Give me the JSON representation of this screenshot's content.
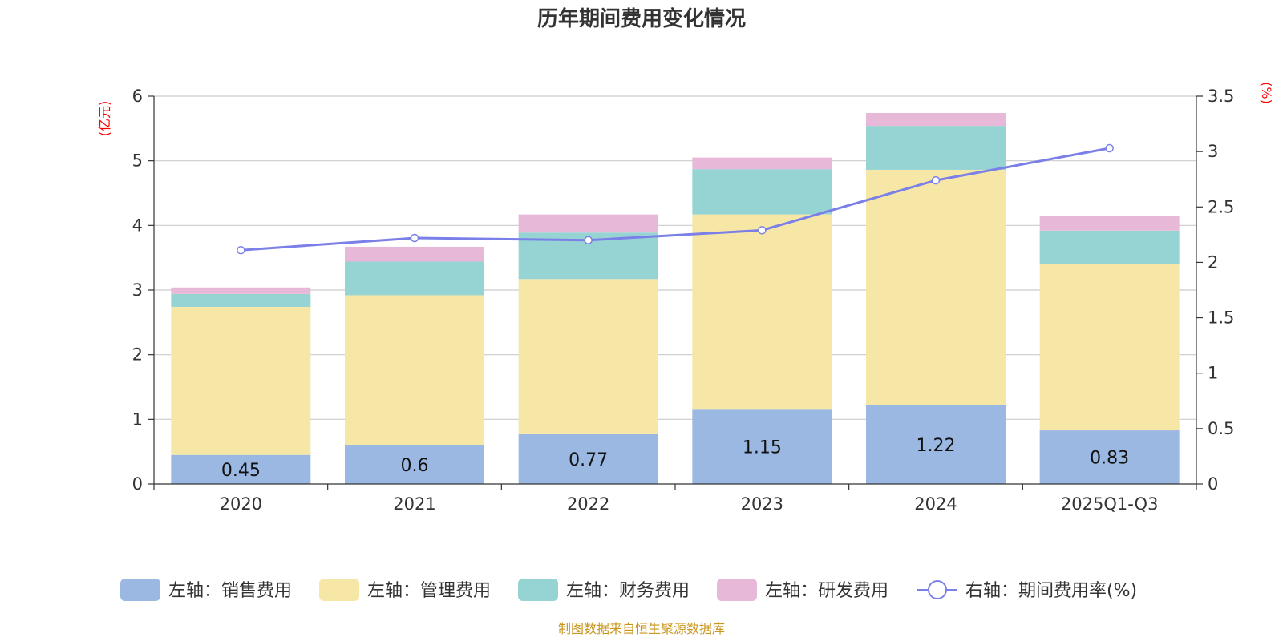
{
  "chart_data": {
    "type": "bar",
    "title": "历年期间费用变化情况",
    "categories": [
      "2020",
      "2021",
      "2022",
      "2023",
      "2024",
      "2025Q1-Q3"
    ],
    "left_axis": {
      "unit": "(亿元)",
      "ylim": [
        0,
        6
      ],
      "ticks": [
        "0",
        "1",
        "2",
        "3",
        "4",
        "5",
        "6"
      ]
    },
    "right_axis": {
      "unit": "(%)",
      "ylim": [
        0,
        3.5
      ],
      "ticks": [
        "0",
        "0.5",
        "1",
        "1.5",
        "2",
        "2.5",
        "3",
        "3.5"
      ]
    },
    "series": [
      {
        "name": "左轴：销售费用",
        "kind": "bar",
        "axis": "left",
        "color": "#9bb8e3",
        "values": [
          0.45,
          0.6,
          0.77,
          1.15,
          1.22,
          0.83
        ],
        "labels": [
          "0.45",
          "0.6",
          "0.77",
          "1.15",
          "1.22",
          "0.83"
        ]
      },
      {
        "name": "左轴：管理费用",
        "kind": "bar",
        "axis": "left",
        "color": "#f7e7a6",
        "values": [
          2.29,
          2.32,
          2.4,
          3.02,
          3.64,
          2.57
        ]
      },
      {
        "name": "左轴：财务费用",
        "kind": "bar",
        "axis": "left",
        "color": "#96d4d4",
        "values": [
          0.2,
          0.52,
          0.72,
          0.7,
          0.68,
          0.52
        ]
      },
      {
        "name": "左轴：研发费用",
        "kind": "bar",
        "axis": "left",
        "color": "#e8b8d8",
        "values": [
          0.1,
          0.23,
          0.28,
          0.18,
          0.2,
          0.23
        ]
      },
      {
        "name": "右轴：期间费用率(%)",
        "kind": "line",
        "axis": "right",
        "color": "#7b7fe8",
        "values": [
          2.11,
          2.22,
          2.2,
          2.29,
          2.74,
          3.03
        ]
      }
    ],
    "legend_position": "bottom",
    "grid": true
  },
  "source": "制图数据来自恒生聚源数据库"
}
